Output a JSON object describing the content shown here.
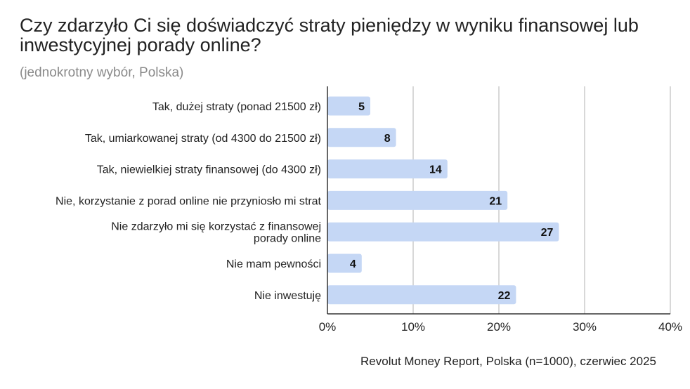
{
  "title": "Czy zdarzyło Ci się doświadczyć straty pieniędzy w wyniku finansowej lub inwestycyjnej porady online?",
  "subtitle": "(jednokrotny wybór, Polska)",
  "source": "Revolut Money Report, Polska (n=1000), czerwiec 2025",
  "chart_data": {
    "type": "bar",
    "orientation": "horizontal",
    "categories": [
      "Tak, dużej straty (ponad 21500 zł)",
      "Tak, umiarkowanej straty (od 4300 do 21500 zł)",
      "Tak, niewielkiej straty finansowej (do 4300 zł)",
      "Nie, korzystanie z porad online nie przyniosło mi strat",
      "Nie zdarzyło mi się korzystać z finansowej porady online",
      "Nie mam pewności",
      "Nie inwestuję"
    ],
    "values": [
      5,
      8,
      14,
      21,
      27,
      4,
      22
    ],
    "data_labels": [
      "5",
      "8",
      "14",
      "21",
      "27",
      "4",
      "22"
    ],
    "xlim": [
      0,
      40
    ],
    "x_ticks": [
      0,
      10,
      20,
      30,
      40
    ],
    "x_tick_labels": [
      "0%",
      "10%",
      "20%",
      "30%",
      "40%"
    ],
    "grid": true,
    "bar_color": "#c5d7f5",
    "grid_color": "#cccccc",
    "axis_color": "#333333"
  }
}
